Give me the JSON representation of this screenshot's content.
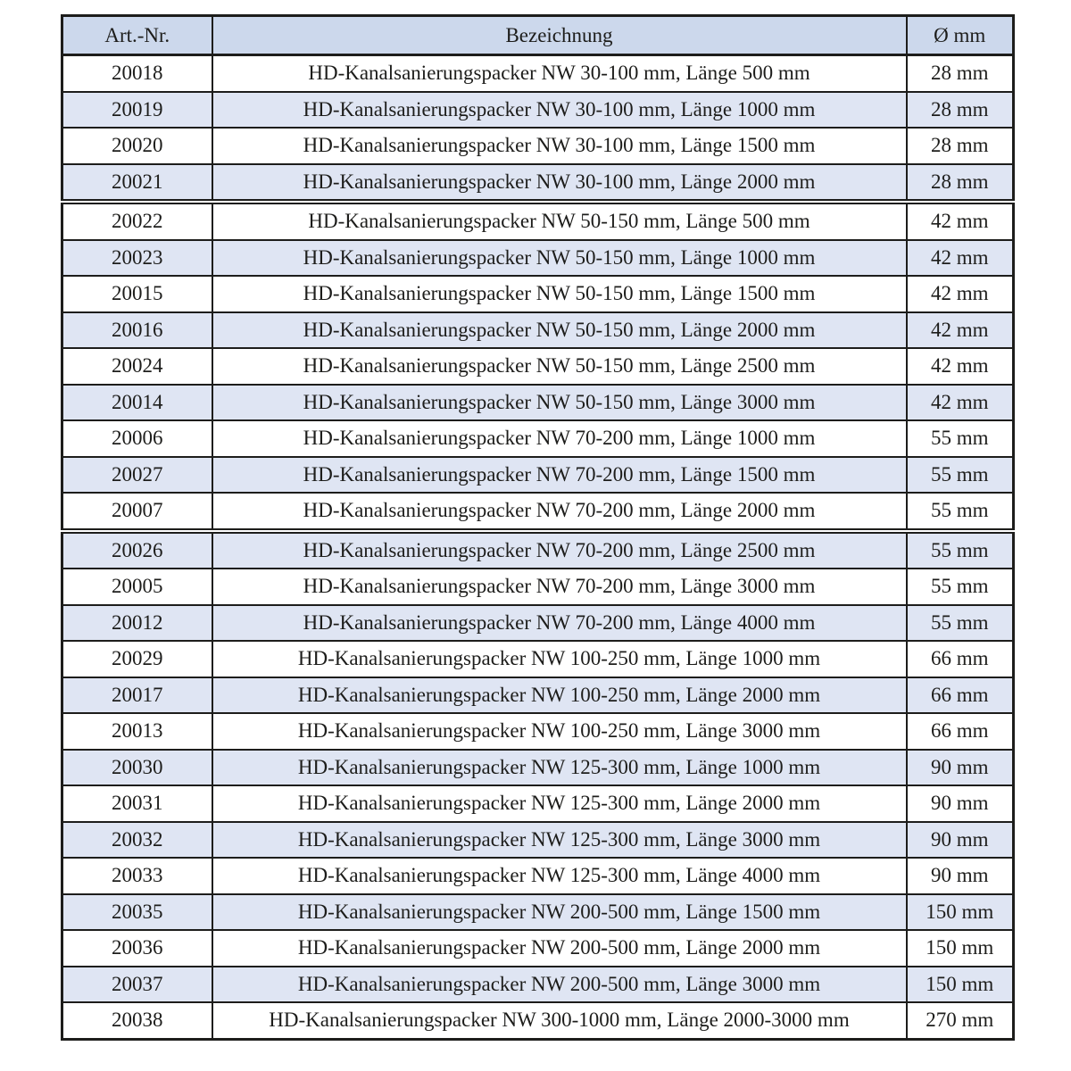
{
  "table": {
    "columns": [
      "Art.-Nr.",
      "Bezeichnung",
      "Ø mm"
    ],
    "colors": {
      "header_bg": "#ccd8ec",
      "row_alt_bg": "#dfe5f3",
      "row_bg": "#ffffff",
      "border": "#1d1d1b",
      "text": "#1d1d1b"
    },
    "rows": [
      {
        "art_nr": "20018",
        "bezeichnung": "HD-Kanalsanierungspacker NW 30-100 mm, Länge 500 mm",
        "durchmesser": "28 mm",
        "shaded": false,
        "break_before": false
      },
      {
        "art_nr": "20019",
        "bezeichnung": "HD-Kanalsanierungspacker NW 30-100 mm, Länge 1000 mm",
        "durchmesser": "28 mm",
        "shaded": true,
        "break_before": false
      },
      {
        "art_nr": "20020",
        "bezeichnung": "HD-Kanalsanierungspacker NW 30-100 mm, Länge 1500 mm",
        "durchmesser": "28 mm",
        "shaded": false,
        "break_before": false
      },
      {
        "art_nr": "20021",
        "bezeichnung": "HD-Kanalsanierungspacker NW 30-100 mm, Länge 2000 mm",
        "durchmesser": "28 mm",
        "shaded": true,
        "break_before": false
      },
      {
        "art_nr": "20022",
        "bezeichnung": "HD-Kanalsanierungspacker NW 50-150 mm, Länge 500 mm",
        "durchmesser": "42 mm",
        "shaded": false,
        "break_before": true
      },
      {
        "art_nr": "20023",
        "bezeichnung": "HD-Kanalsanierungspacker NW 50-150 mm, Länge 1000 mm",
        "durchmesser": "42 mm",
        "shaded": true,
        "break_before": false
      },
      {
        "art_nr": "20015",
        "bezeichnung": "HD-Kanalsanierungspacker NW 50-150 mm, Länge 1500 mm",
        "durchmesser": "42 mm",
        "shaded": false,
        "break_before": false
      },
      {
        "art_nr": "20016",
        "bezeichnung": "HD-Kanalsanierungspacker NW 50-150 mm, Länge 2000 mm",
        "durchmesser": "42 mm",
        "shaded": true,
        "break_before": false
      },
      {
        "art_nr": "20024",
        "bezeichnung": "HD-Kanalsanierungspacker NW 50-150 mm, Länge 2500 mm",
        "durchmesser": "42 mm",
        "shaded": false,
        "break_before": false
      },
      {
        "art_nr": "20014",
        "bezeichnung": "HD-Kanalsanierungspacker NW 50-150 mm, Länge 3000 mm",
        "durchmesser": "42 mm",
        "shaded": true,
        "break_before": false
      },
      {
        "art_nr": "20006",
        "bezeichnung": "HD-Kanalsanierungspacker NW 70-200 mm, Länge 1000 mm",
        "durchmesser": "55 mm",
        "shaded": false,
        "break_before": false
      },
      {
        "art_nr": "20027",
        "bezeichnung": "HD-Kanalsanierungspacker NW 70-200 mm, Länge 1500 mm",
        "durchmesser": "55 mm",
        "shaded": true,
        "break_before": false
      },
      {
        "art_nr": "20007",
        "bezeichnung": "HD-Kanalsanierungspacker NW 70-200 mm, Länge 2000 mm",
        "durchmesser": "55 mm",
        "shaded": false,
        "break_before": false
      },
      {
        "art_nr": "20026",
        "bezeichnung": "HD-Kanalsanierungspacker NW 70-200 mm, Länge 2500 mm",
        "durchmesser": "55 mm",
        "shaded": true,
        "break_before": true
      },
      {
        "art_nr": "20005",
        "bezeichnung": "HD-Kanalsanierungspacker NW 70-200 mm, Länge 3000 mm",
        "durchmesser": "55 mm",
        "shaded": false,
        "break_before": false
      },
      {
        "art_nr": "20012",
        "bezeichnung": "HD-Kanalsanierungspacker NW 70-200 mm, Länge 4000 mm",
        "durchmesser": "55 mm",
        "shaded": true,
        "break_before": false
      },
      {
        "art_nr": "20029",
        "bezeichnung": "HD-Kanalsanierungspacker NW 100-250 mm, Länge 1000 mm",
        "durchmesser": "66 mm",
        "shaded": false,
        "break_before": false
      },
      {
        "art_nr": "20017",
        "bezeichnung": "HD-Kanalsanierungspacker NW 100-250 mm, Länge 2000 mm",
        "durchmesser": "66 mm",
        "shaded": true,
        "break_before": false
      },
      {
        "art_nr": "20013",
        "bezeichnung": "HD-Kanalsanierungspacker NW 100-250 mm, Länge 3000 mm",
        "durchmesser": "66 mm",
        "shaded": false,
        "break_before": false
      },
      {
        "art_nr": "20030",
        "bezeichnung": "HD-Kanalsanierungspacker NW 125-300 mm, Länge 1000 mm",
        "durchmesser": "90 mm",
        "shaded": true,
        "break_before": false
      },
      {
        "art_nr": "20031",
        "bezeichnung": "HD-Kanalsanierungspacker NW 125-300 mm, Länge 2000 mm",
        "durchmesser": "90 mm",
        "shaded": false,
        "break_before": false
      },
      {
        "art_nr": "20032",
        "bezeichnung": "HD-Kanalsanierungspacker NW 125-300 mm, Länge 3000 mm",
        "durchmesser": "90 mm",
        "shaded": true,
        "break_before": false
      },
      {
        "art_nr": "20033",
        "bezeichnung": "HD-Kanalsanierungspacker NW 125-300 mm, Länge 4000 mm",
        "durchmesser": "90 mm",
        "shaded": false,
        "break_before": false
      },
      {
        "art_nr": "20035",
        "bezeichnung": "HD-Kanalsanierungspacker NW 200-500 mm, Länge 1500 mm",
        "durchmesser": "150 mm",
        "shaded": true,
        "break_before": false
      },
      {
        "art_nr": "20036",
        "bezeichnung": "HD-Kanalsanierungspacker NW 200-500 mm, Länge 2000 mm",
        "durchmesser": "150 mm",
        "shaded": false,
        "break_before": false
      },
      {
        "art_nr": "20037",
        "bezeichnung": "HD-Kanalsanierungspacker NW 200-500 mm, Länge 3000 mm",
        "durchmesser": "150 mm",
        "shaded": true,
        "break_before": false
      },
      {
        "art_nr": "20038",
        "bezeichnung": "HD-Kanalsanierungspacker NW 300-1000 mm, Länge 2000-3000 mm",
        "durchmesser": "270 mm",
        "shaded": false,
        "break_before": false
      }
    ]
  }
}
